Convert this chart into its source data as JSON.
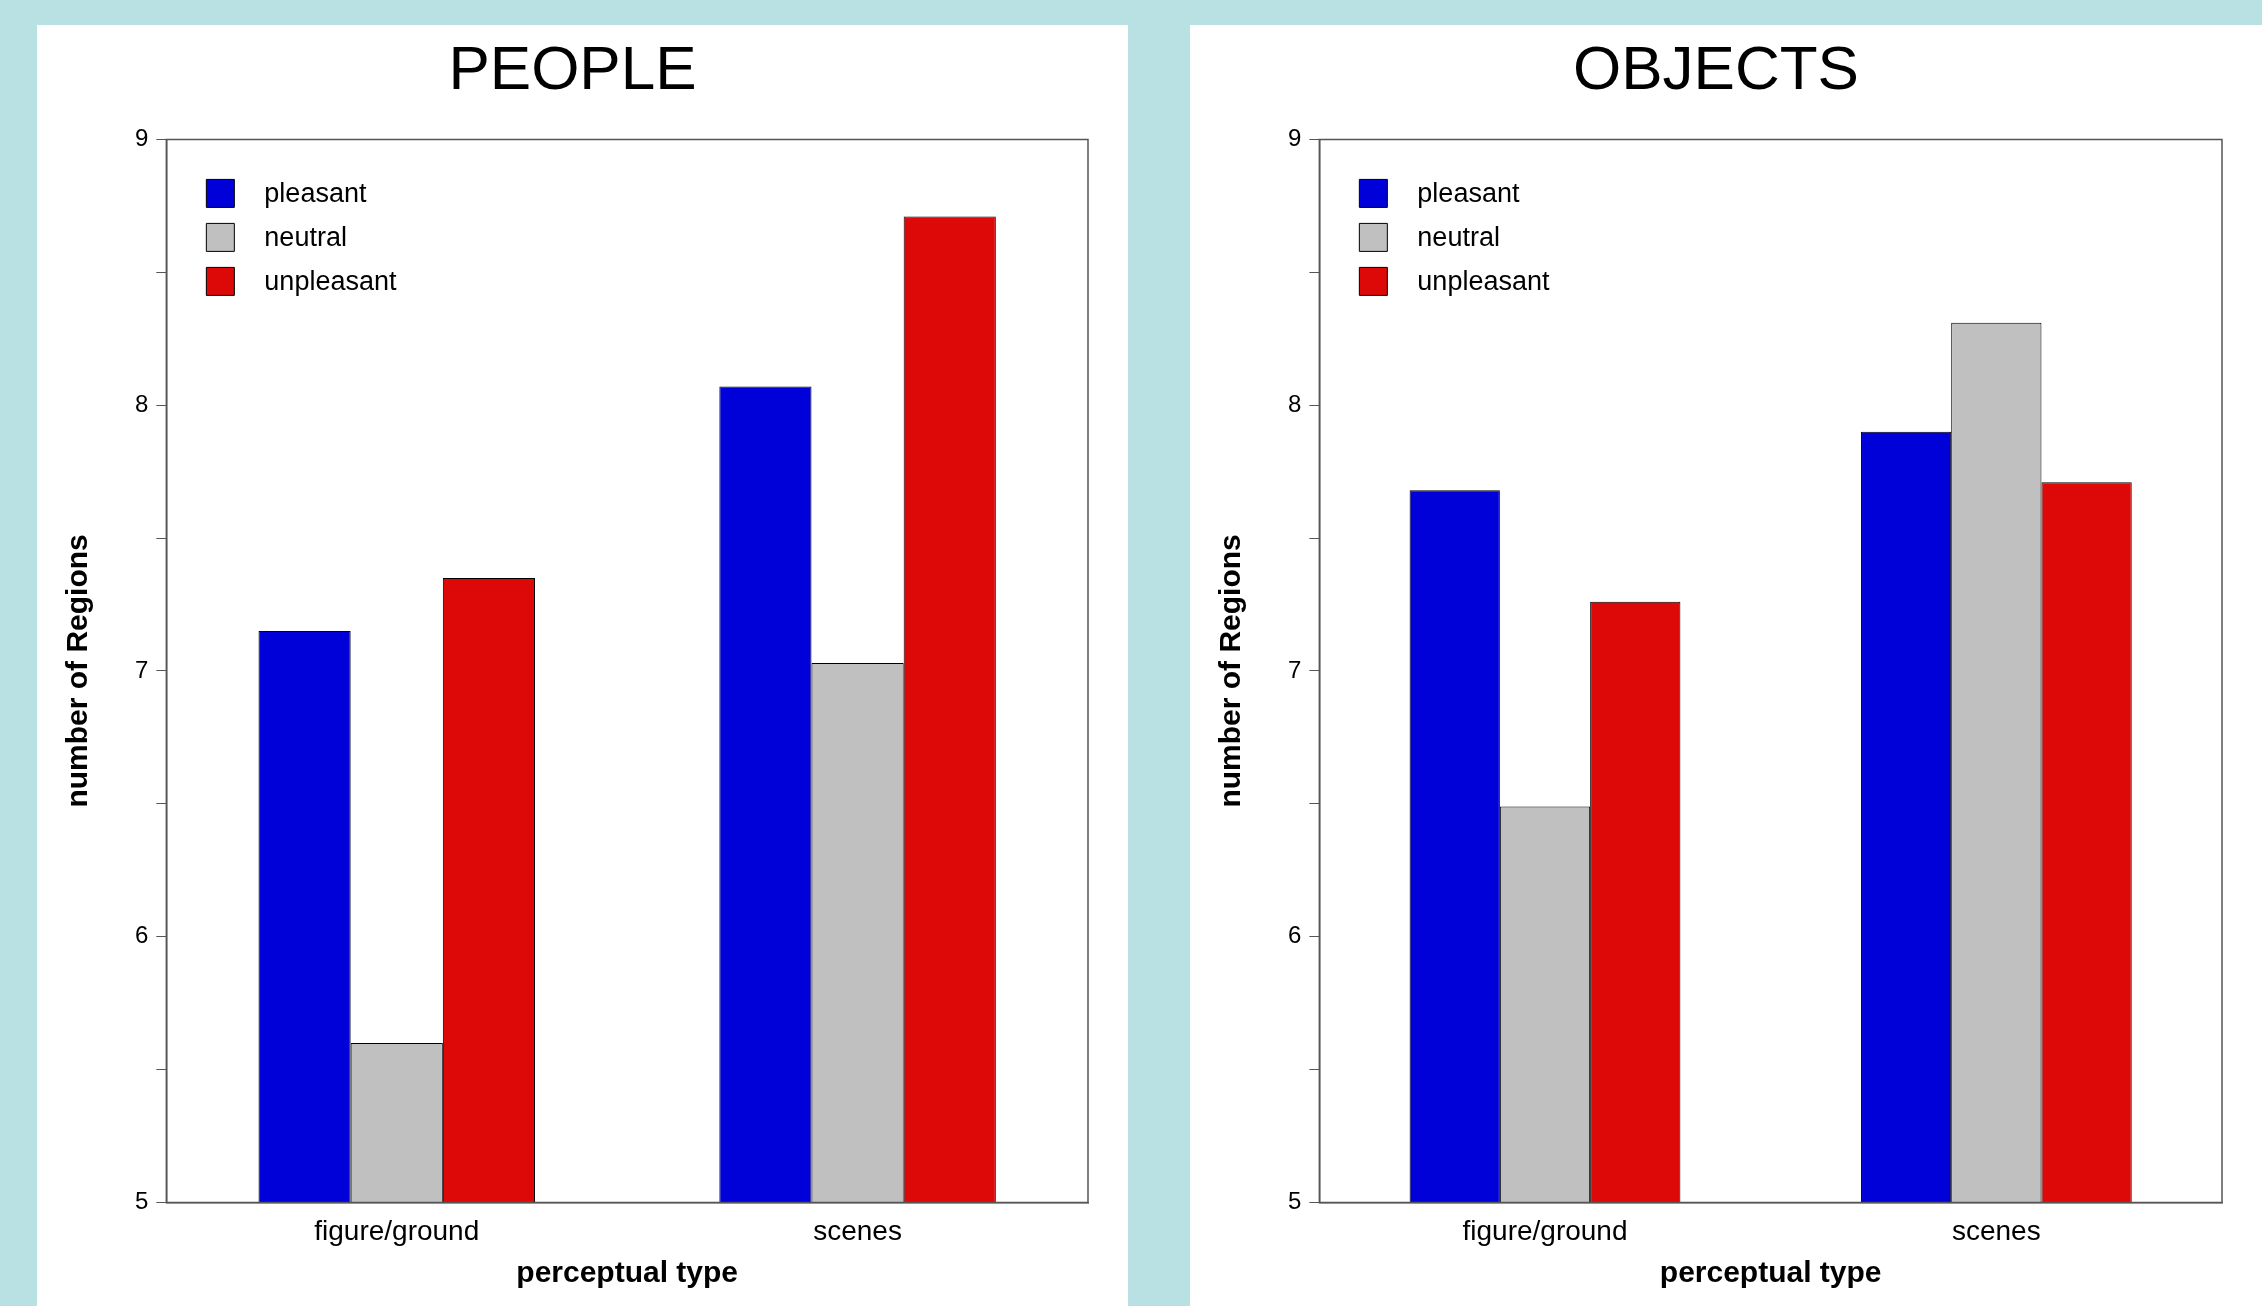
{
  "chart_data": [
    {
      "type": "bar",
      "title": "PEOPLE",
      "xlabel": "perceptual type",
      "ylabel": "number of Regions",
      "categories": [
        "figure/ground",
        "scenes"
      ],
      "series": [
        {
          "name": "pleasant",
          "color": "#0000d8",
          "values": [
            7.15,
            8.07
          ]
        },
        {
          "name": "neutral",
          "color": "#c0c0c0",
          "values": [
            5.6,
            7.03
          ]
        },
        {
          "name": "unpleasant",
          "color": "#dd0808",
          "values": [
            7.35,
            8.71
          ]
        }
      ],
      "ylim": [
        5,
        9
      ],
      "yticks": [
        5,
        {
          "value": 5.5,
          "label": null
        },
        6,
        {
          "value": 6.5,
          "label": null
        },
        7,
        {
          "value": 7.5,
          "label": null
        },
        8,
        {
          "value": 8.5,
          "label": null
        },
        9
      ],
      "legend": "top left"
    },
    {
      "type": "bar",
      "title": "OBJECTS",
      "xlabel": "perceptual type",
      "ylabel": "number of Regions",
      "categories": [
        "figure/ground",
        "scenes"
      ],
      "series": [
        {
          "name": "pleasant",
          "color": "#0000d8",
          "values": [
            7.68,
            7.9
          ]
        },
        {
          "name": "neutral",
          "color": "#c0c0c0",
          "values": [
            6.49,
            8.31
          ]
        },
        {
          "name": "unpleasant",
          "color": "#dd0808",
          "values": [
            7.26,
            7.71
          ]
        }
      ],
      "ylim": [
        5,
        9
      ],
      "yticks": [
        5,
        {
          "value": 5.5,
          "label": null
        },
        6,
        {
          "value": 6.5,
          "label": null
        },
        7,
        {
          "value": 7.5,
          "label": null
        },
        8,
        {
          "value": 8.5,
          "label": null
        },
        9
      ],
      "legend": "top left"
    }
  ]
}
